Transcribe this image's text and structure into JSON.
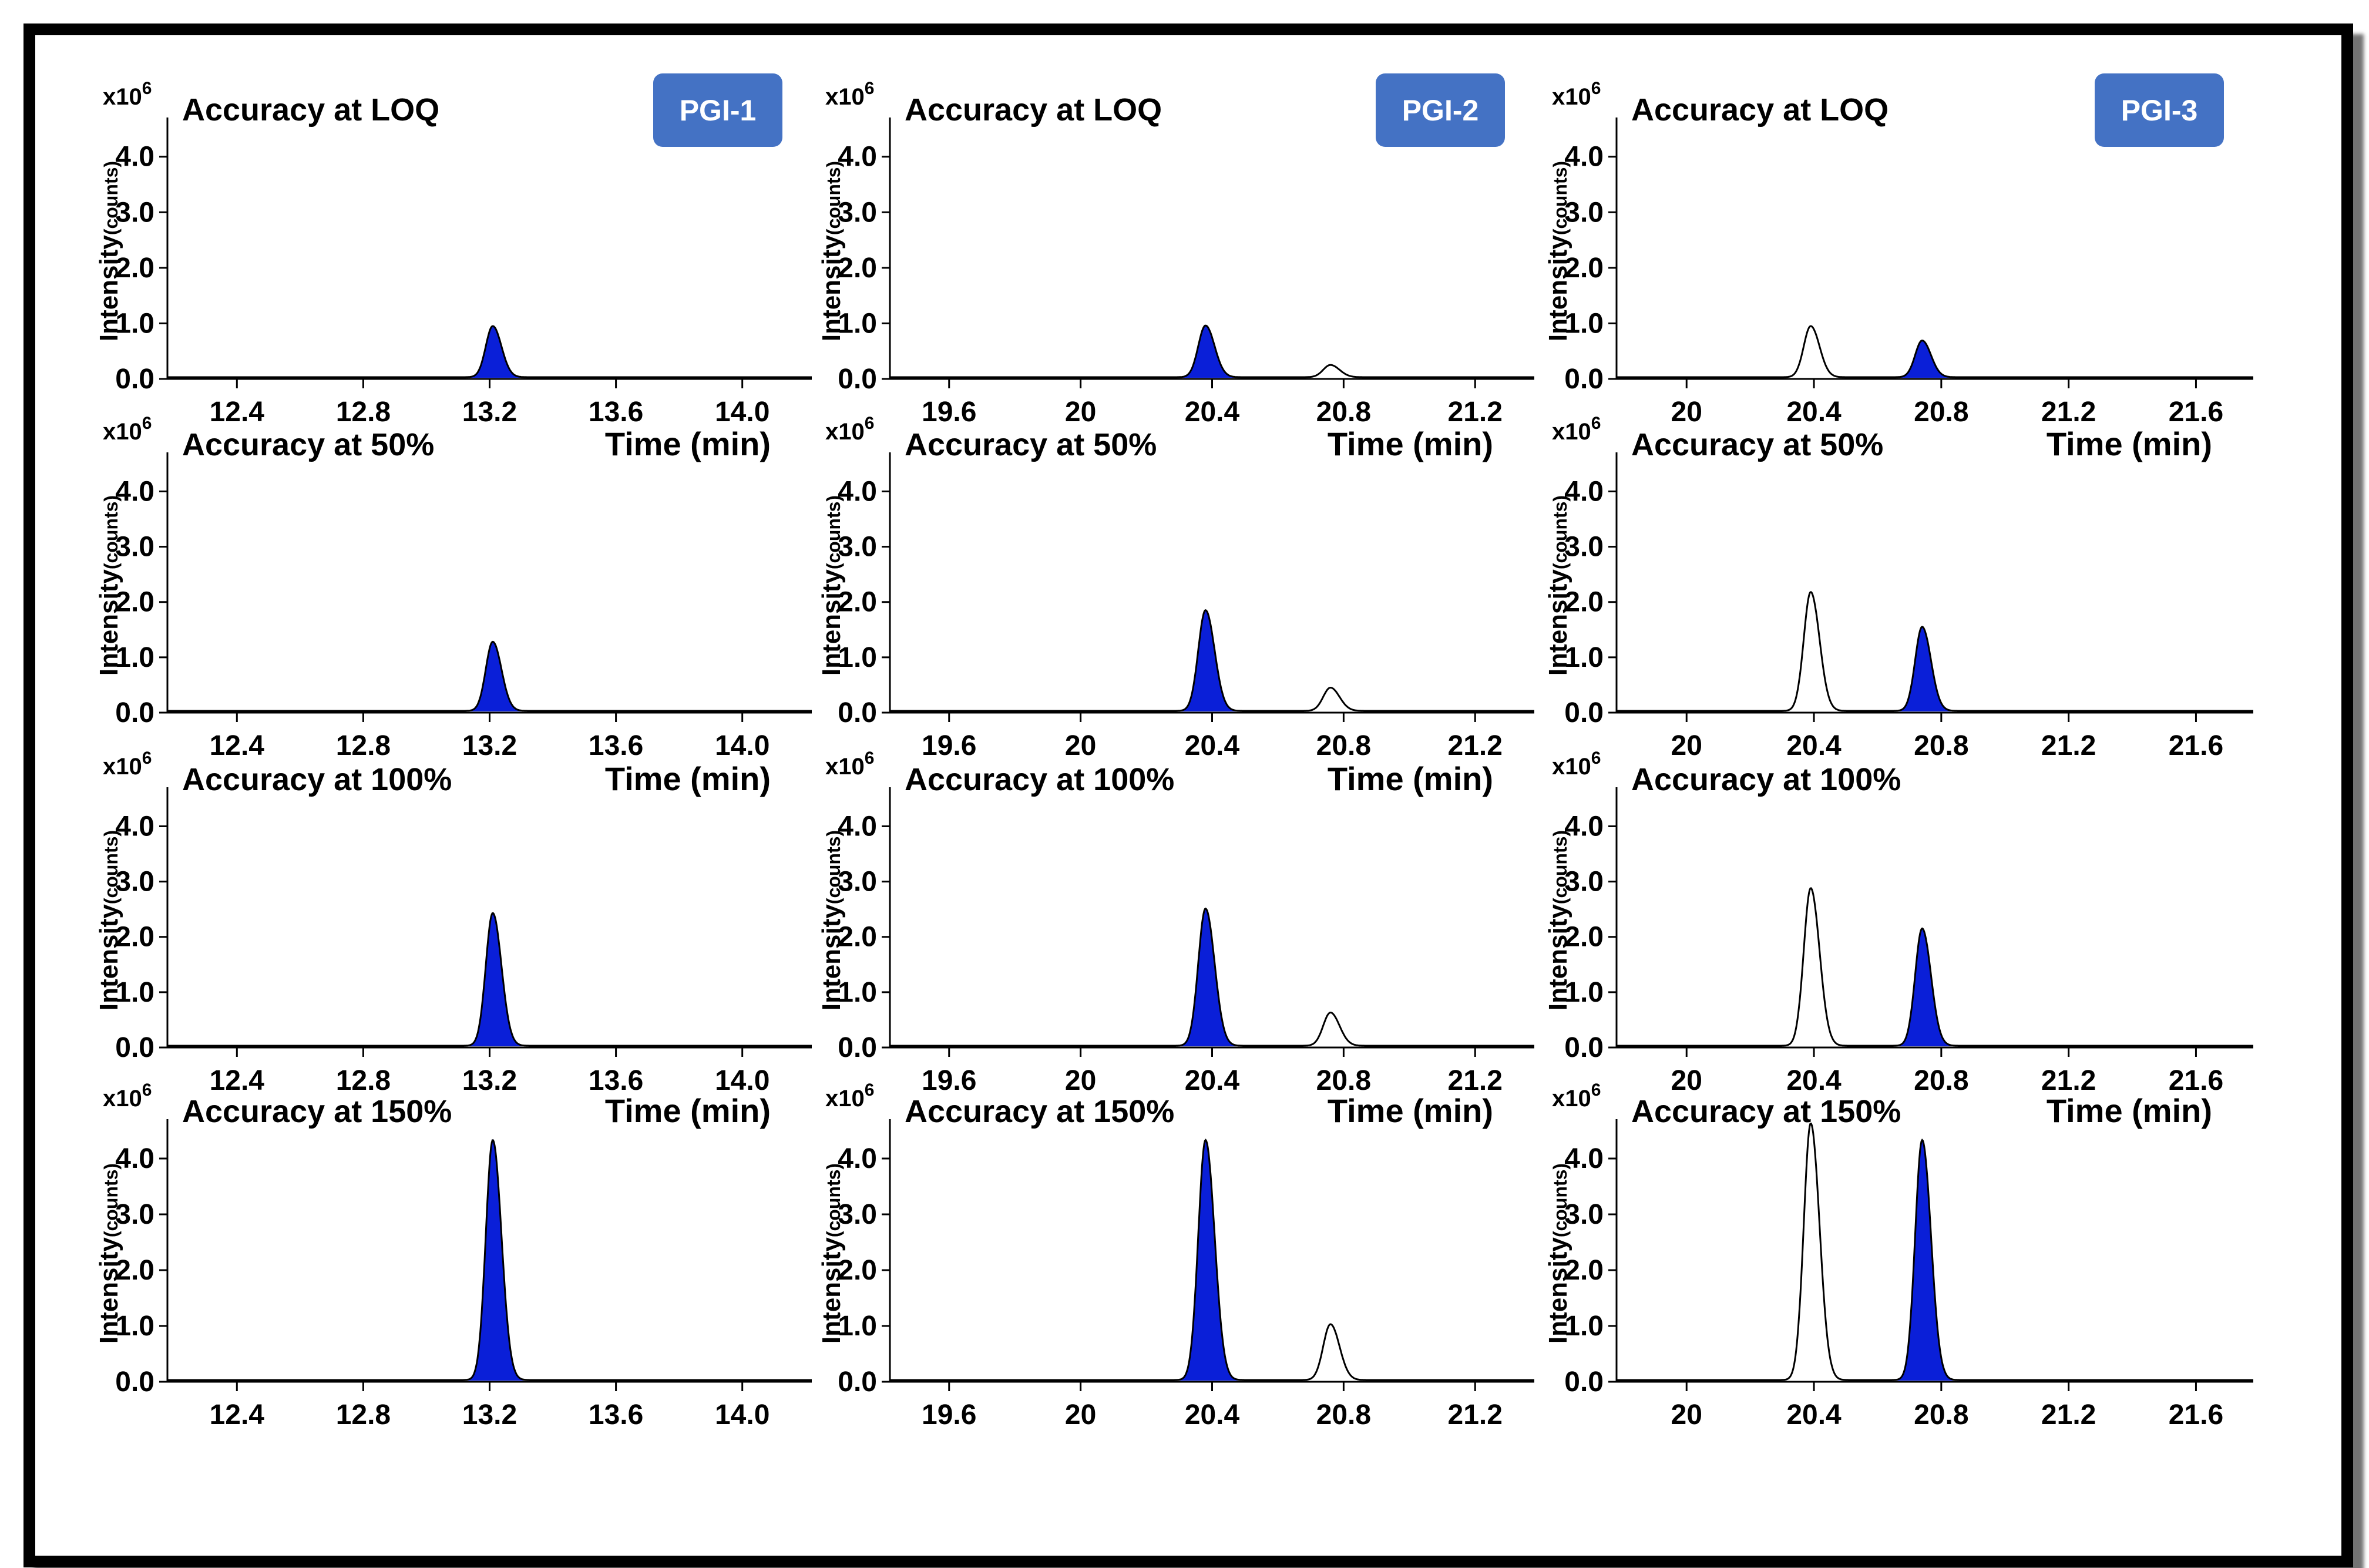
{
  "figure": {
    "y_multiplier": "x10",
    "y_multiplier_exp": "6",
    "ylabel_main": "Intensity",
    "ylabel_unit": "(counts)",
    "xlabel": "Time (min)",
    "y_ticks": [
      "0.0",
      "1.0",
      "2.0",
      "3.0",
      "4.0"
    ],
    "colors": {
      "fill": "#0a1fd8",
      "badge": "#4472c4",
      "line": "#000000"
    }
  },
  "chart_data": [
    {
      "type": "line",
      "group": "PGI-1",
      "badge": "PGI-1",
      "title": "Accuracy at LOQ",
      "show_xlabel": false,
      "xlim": [
        12.18,
        14.22
      ],
      "ylim": [
        0,
        4.6
      ],
      "x_ticks": [
        12.4,
        12.8,
        13.2,
        13.6,
        14.0
      ],
      "x_tick_labels": [
        "12.4",
        "12.8",
        "13.2",
        "13.6",
        "14.0"
      ],
      "peaks": [
        {
          "rt": 13.21,
          "height": 0.92,
          "filled": true
        }
      ]
    },
    {
      "type": "line",
      "group": "PGI-2",
      "badge": "PGI-2",
      "title": "Accuracy at LOQ",
      "show_xlabel": false,
      "xlim": [
        19.42,
        21.38
      ],
      "ylim": [
        0,
        4.6
      ],
      "x_ticks": [
        19.6,
        20.0,
        20.4,
        20.8,
        21.2
      ],
      "x_tick_labels": [
        "19.6",
        "20",
        "20.4",
        "20.8",
        "21.2"
      ],
      "peaks": [
        {
          "rt": 20.38,
          "height": 0.93,
          "filled": true
        },
        {
          "rt": 20.76,
          "height": 0.22,
          "filled": false
        }
      ]
    },
    {
      "type": "line",
      "group": "PGI-3",
      "badge": "PGI-3",
      "title": "Accuracy at LOQ",
      "show_xlabel": false,
      "xlim": [
        19.78,
        21.78
      ],
      "ylim": [
        0,
        4.6
      ],
      "x_ticks": [
        20.0,
        20.4,
        20.8,
        21.2,
        21.6
      ],
      "x_tick_labels": [
        "20",
        "20.4",
        "20.8",
        "21.2",
        "21.6"
      ],
      "peaks": [
        {
          "rt": 20.39,
          "height": 0.92,
          "filled": false
        },
        {
          "rt": 20.74,
          "height": 0.66,
          "filled": true
        }
      ]
    },
    {
      "type": "line",
      "group": "PGI-1",
      "title": "Accuracy at 50%",
      "show_xlabel": true,
      "xlim": [
        12.18,
        14.22
      ],
      "ylim": [
        0,
        4.6
      ],
      "x_ticks": [
        12.4,
        12.8,
        13.2,
        13.6,
        14.0
      ],
      "x_tick_labels": [
        "12.4",
        "12.8",
        "13.2",
        "13.6",
        "14.0"
      ],
      "peaks": [
        {
          "rt": 13.21,
          "height": 1.25,
          "filled": true
        }
      ]
    },
    {
      "type": "line",
      "group": "PGI-2",
      "title": "Accuracy at 50%",
      "show_xlabel": true,
      "xlim": [
        19.42,
        21.38
      ],
      "ylim": [
        0,
        4.6
      ],
      "x_ticks": [
        19.6,
        20.0,
        20.4,
        20.8,
        21.2
      ],
      "x_tick_labels": [
        "19.6",
        "20",
        "20.4",
        "20.8",
        "21.2"
      ],
      "peaks": [
        {
          "rt": 20.38,
          "height": 1.82,
          "filled": true
        },
        {
          "rt": 20.76,
          "height": 0.42,
          "filled": false
        }
      ]
    },
    {
      "type": "line",
      "group": "PGI-3",
      "title": "Accuracy at 50%",
      "show_xlabel": true,
      "xlim": [
        19.78,
        21.78
      ],
      "ylim": [
        0,
        4.6
      ],
      "x_ticks": [
        20.0,
        20.4,
        20.8,
        21.2,
        21.6
      ],
      "x_tick_labels": [
        "20",
        "20.4",
        "20.8",
        "21.2",
        "21.6"
      ],
      "peaks": [
        {
          "rt": 20.39,
          "height": 2.15,
          "filled": false
        },
        {
          "rt": 20.74,
          "height": 1.52,
          "filled": true
        }
      ]
    },
    {
      "type": "line",
      "group": "PGI-1",
      "title": "Accuracy at 100%",
      "show_xlabel": true,
      "xlim": [
        12.18,
        14.22
      ],
      "ylim": [
        0,
        4.6
      ],
      "x_ticks": [
        12.4,
        12.8,
        13.2,
        13.6,
        14.0
      ],
      "x_tick_labels": [
        "12.4",
        "12.8",
        "13.2",
        "13.6",
        "14.0"
      ],
      "peaks": [
        {
          "rt": 13.21,
          "height": 2.4,
          "filled": true
        }
      ]
    },
    {
      "type": "line",
      "group": "PGI-2",
      "title": "Accuracy at 100%",
      "show_xlabel": true,
      "xlim": [
        19.42,
        21.38
      ],
      "ylim": [
        0,
        4.6
      ],
      "x_ticks": [
        19.6,
        20.0,
        20.4,
        20.8,
        21.2
      ],
      "x_tick_labels": [
        "19.6",
        "20",
        "20.4",
        "20.8",
        "21.2"
      ],
      "peaks": [
        {
          "rt": 20.38,
          "height": 2.48,
          "filled": true
        },
        {
          "rt": 20.76,
          "height": 0.6,
          "filled": false
        }
      ]
    },
    {
      "type": "line",
      "group": "PGI-3",
      "title": "Accuracy at 100%",
      "show_xlabel": false,
      "xlim": [
        19.78,
        21.78
      ],
      "ylim": [
        0,
        4.6
      ],
      "x_ticks": [
        20.0,
        20.4,
        20.8,
        21.2,
        21.6
      ],
      "x_tick_labels": [
        "20",
        "20.4",
        "20.8",
        "21.2",
        "21.6"
      ],
      "peaks": [
        {
          "rt": 20.39,
          "height": 2.85,
          "filled": false
        },
        {
          "rt": 20.74,
          "height": 2.12,
          "filled": true
        }
      ]
    },
    {
      "type": "line",
      "group": "PGI-1",
      "title": "Accuracy at 150%",
      "show_xlabel": true,
      "xlim": [
        12.18,
        14.22
      ],
      "ylim": [
        0,
        4.6
      ],
      "x_ticks": [
        12.4,
        12.8,
        13.2,
        13.6,
        14.0
      ],
      "x_tick_labels": [
        "12.4",
        "12.8",
        "13.2",
        "13.6",
        "14.0"
      ],
      "peaks": [
        {
          "rt": 13.21,
          "height": 4.3,
          "filled": true
        }
      ]
    },
    {
      "type": "line",
      "group": "PGI-2",
      "title": "Accuracy at 150%",
      "show_xlabel": true,
      "xlim": [
        19.42,
        21.38
      ],
      "ylim": [
        0,
        4.6
      ],
      "x_ticks": [
        19.6,
        20.0,
        20.4,
        20.8,
        21.2
      ],
      "x_tick_labels": [
        "19.6",
        "20",
        "20.4",
        "20.8",
        "21.2"
      ],
      "peaks": [
        {
          "rt": 20.38,
          "height": 4.3,
          "filled": true
        },
        {
          "rt": 20.76,
          "height": 1.0,
          "filled": false
        }
      ]
    },
    {
      "type": "line",
      "group": "PGI-3",
      "title": "Accuracy at 150%",
      "show_xlabel": true,
      "xlim": [
        19.78,
        21.78
      ],
      "ylim": [
        0,
        4.6
      ],
      "x_ticks": [
        20.0,
        20.4,
        20.8,
        21.2,
        21.6
      ],
      "x_tick_labels": [
        "20",
        "20.4",
        "20.8",
        "21.2",
        "21.6"
      ],
      "peaks": [
        {
          "rt": 20.39,
          "height": 4.6,
          "filled": false
        },
        {
          "rt": 20.74,
          "height": 4.3,
          "filled": true
        }
      ]
    }
  ]
}
